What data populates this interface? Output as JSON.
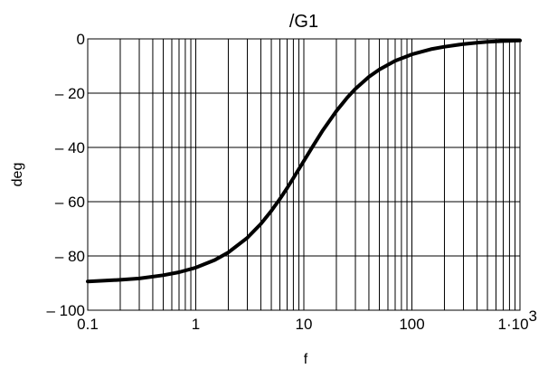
{
  "chart_data": {
    "type": "line",
    "title": "/G1",
    "xlabel": "f",
    "ylabel": "deg",
    "x_scale": "log",
    "xlim": [
      0.1,
      1000
    ],
    "ylim": [
      -100,
      0
    ],
    "grid": true,
    "x_tick_labels": [
      {
        "value": 0.1,
        "label": "0.1"
      },
      {
        "value": 1,
        "label": "1"
      },
      {
        "value": 10,
        "label": "10"
      },
      {
        "value": 100,
        "label": "100"
      },
      {
        "value": 1000,
        "label": "1·10",
        "exponent": "3"
      }
    ],
    "y_tick_labels": [
      {
        "value": 0,
        "label": "0"
      },
      {
        "value": -20,
        "label": "– 20"
      },
      {
        "value": -40,
        "label": "– 40"
      },
      {
        "value": -60,
        "label": "– 60"
      },
      {
        "value": -80,
        "label": "– 80"
      },
      {
        "value": -100,
        "label": "– 100"
      }
    ],
    "series": [
      {
        "x": [
          0.1,
          0.2,
          0.3,
          0.5,
          0.7,
          1,
          1.5,
          2,
          3,
          4,
          5,
          6,
          7,
          8,
          10,
          12,
          15,
          20,
          25,
          30,
          40,
          50,
          70,
          100,
          150,
          200,
          300,
          400,
          500,
          700,
          1000
        ],
        "y": [
          -89.4,
          -88.8,
          -88.3,
          -87.1,
          -86.0,
          -84.3,
          -81.5,
          -78.7,
          -73.3,
          -68.2,
          -63.4,
          -59.0,
          -55.0,
          -51.3,
          -45.0,
          -39.8,
          -33.7,
          -26.6,
          -21.8,
          -18.4,
          -14.0,
          -11.3,
          -8.1,
          -5.7,
          -3.8,
          -2.9,
          -1.9,
          -1.4,
          -1.1,
          -0.8,
          -0.6
        ]
      }
    ]
  }
}
